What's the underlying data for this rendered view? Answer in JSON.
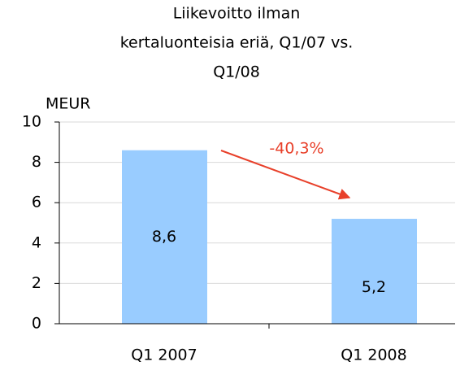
{
  "chart_data": {
    "type": "bar",
    "title": [
      "Liikevoitto ilman",
      "kertaluonteisia eriä, Q1/07 vs.",
      "Q1/08"
    ],
    "y_label": "MEUR",
    "categories": [
      "Q1 2007",
      "Q1 2008"
    ],
    "values": [
      8.6,
      5.2
    ],
    "value_labels": [
      "8,6",
      "5,2"
    ],
    "color": "#99ccff",
    "annotation": "-40,3%",
    "annotation_color": "#e8402a",
    "ylim": [
      0,
      10
    ],
    "yticks": [
      0,
      2,
      4,
      6,
      8,
      10
    ],
    "grid": true
  }
}
